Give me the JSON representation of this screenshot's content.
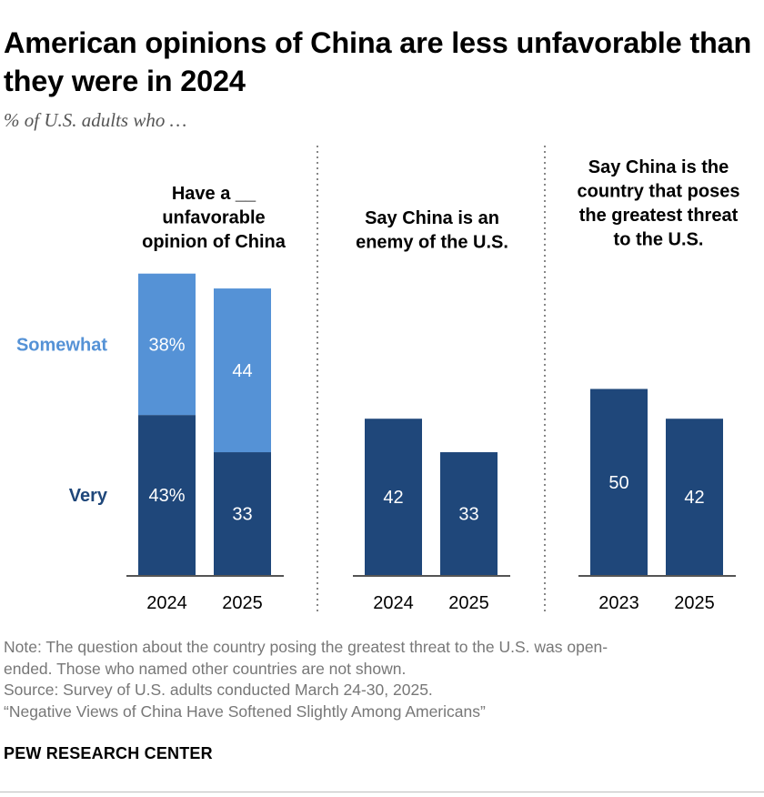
{
  "title": "American opinions of China are less unfavorable than they were in 2024",
  "subtitle": "% of U.S. adults who …",
  "colors": {
    "very": "#1f477a",
    "somewhat": "#5592d6",
    "axis": "#555555",
    "divider": "#888888"
  },
  "chart_data": {
    "type": "bar",
    "stacked_panel": 0,
    "legend": {
      "somewhat": "Somewhat",
      "very": "Very"
    },
    "panels": [
      {
        "title_lines": [
          "Have a __",
          "unfavorable",
          "opinion of China"
        ],
        "categories": [
          "2024",
          "2025"
        ],
        "series": [
          {
            "name": "Very",
            "values": [
              43,
              33
            ],
            "labels": [
              "43%",
              "33"
            ]
          },
          {
            "name": "Somewhat",
            "values": [
              38,
              44
            ],
            "labels": [
              "38%",
              "44"
            ]
          }
        ]
      },
      {
        "title_lines": [
          "Say China is an",
          "enemy of the U.S."
        ],
        "categories": [
          "2024",
          "2025"
        ],
        "series": [
          {
            "name": "Very",
            "values": [
              42,
              33
            ],
            "labels": [
              "42",
              "33"
            ]
          }
        ]
      },
      {
        "title_lines": [
          "Say China is the",
          "country that poses",
          "the greatest threat",
          "to the U.S."
        ],
        "categories": [
          "2023",
          "2025"
        ],
        "series": [
          {
            "name": "Very",
            "values": [
              50,
              42
            ],
            "labels": [
              "50",
              "42"
            ]
          }
        ]
      }
    ]
  },
  "notes": [
    "Note: The question about the country posing the greatest threat to the U.S. was open-",
    "ended. Those who named other countries are not shown.",
    "Source: Survey of U.S. adults conducted March 24-30, 2025.",
    "“Negative Views of China Have Softened Slightly Among Americans”"
  ],
  "org": "PEW RESEARCH CENTER"
}
